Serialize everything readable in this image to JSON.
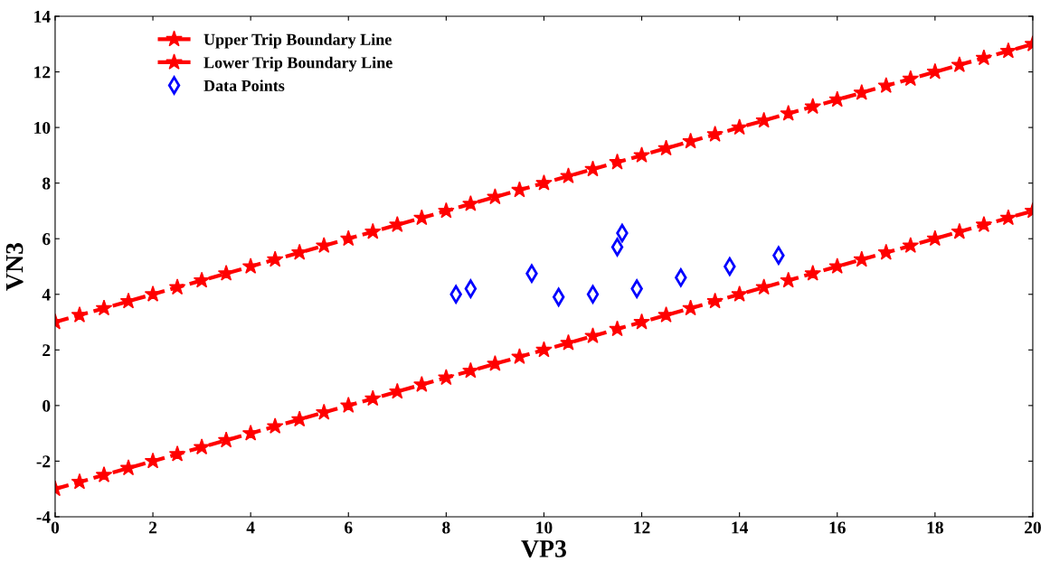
{
  "chart_data": {
    "type": "line",
    "xlabel": "VP3",
    "ylabel": "VN3",
    "xlim": [
      0,
      20
    ],
    "ylim": [
      -4,
      14
    ],
    "xticks": [
      0,
      2,
      4,
      6,
      8,
      10,
      12,
      14,
      16,
      18,
      20
    ],
    "yticks": [
      -4,
      -2,
      0,
      2,
      4,
      6,
      8,
      10,
      12,
      14
    ],
    "grid": false,
    "legend": "top left",
    "line_style": "dashed",
    "series": [
      {
        "name": "Upper Trip Boundary Line",
        "marker": "star",
        "color": "#ff0000",
        "x": [
          0,
          0.5,
          1,
          1.5,
          2,
          2.5,
          3,
          3.5,
          4,
          4.5,
          5,
          5.5,
          6,
          6.5,
          7,
          7.5,
          8,
          8.5,
          9,
          9.5,
          10,
          10.5,
          11,
          11.5,
          12,
          12.5,
          13,
          13.5,
          14,
          14.5,
          15,
          15.5,
          16,
          16.5,
          17,
          17.5,
          18,
          18.5,
          19,
          19.5,
          20
        ],
        "values": [
          3,
          3.25,
          3.5,
          3.75,
          4,
          4.25,
          4.5,
          4.75,
          5,
          5.25,
          5.5,
          5.75,
          6,
          6.25,
          6.5,
          6.75,
          7,
          7.25,
          7.5,
          7.75,
          8,
          8.25,
          8.5,
          8.75,
          9,
          9.25,
          9.5,
          9.75,
          10,
          10.25,
          10.5,
          10.75,
          11,
          11.25,
          11.5,
          11.75,
          12,
          12.25,
          12.5,
          12.75,
          13
        ]
      },
      {
        "name": "Lower Trip Boundary Line",
        "marker": "star",
        "color": "#ff0000",
        "x": [
          0,
          0.5,
          1,
          1.5,
          2,
          2.5,
          3,
          3.5,
          4,
          4.5,
          5,
          5.5,
          6,
          6.5,
          7,
          7.5,
          8,
          8.5,
          9,
          9.5,
          10,
          10.5,
          11,
          11.5,
          12,
          12.5,
          13,
          13.5,
          14,
          14.5,
          15,
          15.5,
          16,
          16.5,
          17,
          17.5,
          18,
          18.5,
          19,
          19.5,
          20
        ],
        "values": [
          -3,
          -2.75,
          -2.5,
          -2.25,
          -2,
          -1.75,
          -1.5,
          -1.25,
          -1,
          -0.75,
          -0.5,
          -0.25,
          0,
          0.25,
          0.5,
          0.75,
          1,
          1.25,
          1.5,
          1.75,
          2,
          2.25,
          2.5,
          2.75,
          3,
          3.25,
          3.5,
          3.75,
          4,
          4.25,
          4.5,
          4.75,
          5,
          5.25,
          5.5,
          5.75,
          6,
          6.25,
          6.5,
          6.75,
          7
        ]
      },
      {
        "name": "Data Points",
        "type": "scatter",
        "marker": "diamond",
        "color": "#0000ff",
        "x": [
          8.2,
          8.5,
          9.75,
          10.3,
          11.0,
          11.5,
          11.6,
          11.9,
          12.8,
          13.8,
          14.8
        ],
        "values": [
          4.0,
          4.2,
          4.75,
          3.9,
          4.0,
          5.7,
          6.2,
          4.2,
          4.6,
          5.0,
          5.4
        ]
      }
    ]
  }
}
